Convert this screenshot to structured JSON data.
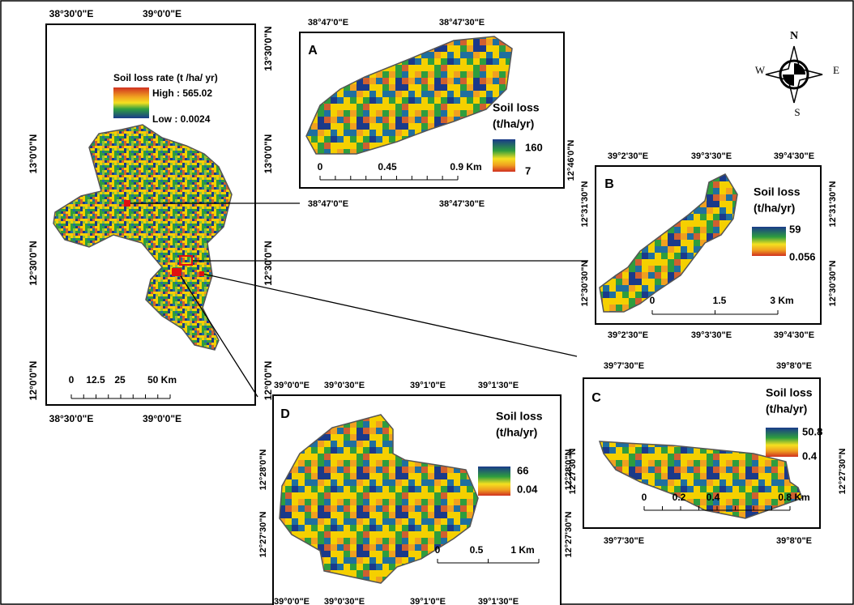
{
  "main": {
    "top_labels": [
      "38°30'0\"E",
      "39°0'0\"E"
    ],
    "bottom_labels": [
      "38°30'0\"E",
      "39°0'0\"E"
    ],
    "left_labels": [
      "13°0'0\"N",
      "12°30'0\"N",
      "12°0'0\"N"
    ],
    "right_labels": [
      "13°30'0\"N",
      "13°0'0\"N",
      "12°30'0\"N",
      "12°0'0\"N"
    ],
    "legend": {
      "title": "Soil loss rate (t /ha/ yr)",
      "high": "High : 565.02",
      "low": "Low : 0.0024"
    },
    "scale": [
      "0",
      "12.5",
      "25",
      "50 Km"
    ]
  },
  "compass": {
    "n": "N",
    "s": "S",
    "w": "W",
    "e": "E"
  },
  "insets": [
    {
      "label": "A",
      "legend_title": [
        "Soil loss",
        "(t/ha/yr)"
      ],
      "legend_max": "160",
      "legend_min": "7",
      "scale": [
        "0",
        "0.45",
        "0.9 Km"
      ],
      "top_labels": [
        "38°47'0\"E",
        "38°47'30\"E"
      ],
      "bottom_labels": [
        "38°47'0\"E",
        "38°47'30\"E"
      ],
      "left_labels": [],
      "right_labels": [
        "12°46'0\"N"
      ]
    },
    {
      "label": "B",
      "legend_title": [
        "Soil loss",
        "(t/ha/yr)"
      ],
      "legend_max": "59",
      "legend_min": "0.056",
      "scale": [
        "0",
        "1.5",
        "3 Km"
      ],
      "top_labels": [
        "39°2'30\"E",
        "39°3'30\"E",
        "39°4'30\"E"
      ],
      "bottom_labels": [
        "39°2'30\"E",
        "39°3'30\"E",
        "39°4'30\"E"
      ],
      "left_labels": [
        "12°31'30\"N",
        "12°30'30\"N"
      ],
      "right_labels": [
        "12°31'30\"N",
        "12°30'30\"N"
      ]
    },
    {
      "label": "C",
      "legend_title": [
        "Soil loss",
        "(t/ha/yr)"
      ],
      "legend_max": "50.8",
      "legend_min": "0.4",
      "scale": [
        "0",
        "0.2",
        "0.4",
        "0.8 Km"
      ],
      "top_labels": [
        "39°7'30\"E",
        "39°8'0\"E"
      ],
      "bottom_labels": [
        "39°7'30\"E",
        "39°8'0\"E"
      ],
      "left_labels": [
        "12°27'30\"N"
      ],
      "right_labels": [
        "12°27'30\"N"
      ]
    },
    {
      "label": "D",
      "legend_title": [
        "Soil loss",
        "(t/ha/yr)"
      ],
      "legend_max": "66",
      "legend_min": "0.04",
      "scale": [
        "0",
        "0.5",
        "1 Km"
      ],
      "top_labels": [
        "39°0'0\"E",
        "39°0'30\"E",
        "39°1'0\"E",
        "39°1'30\"E"
      ],
      "bottom_labels": [
        "39°0'0\"E",
        "39°0'30\"E",
        "39°1'0\"E",
        "39°1'30\"E"
      ],
      "left_labels": [
        "12°28'0\"N",
        "12°27'30\"N"
      ],
      "right_labels": [
        "12°28'0\"N",
        "12°27'30\"N"
      ]
    }
  ]
}
